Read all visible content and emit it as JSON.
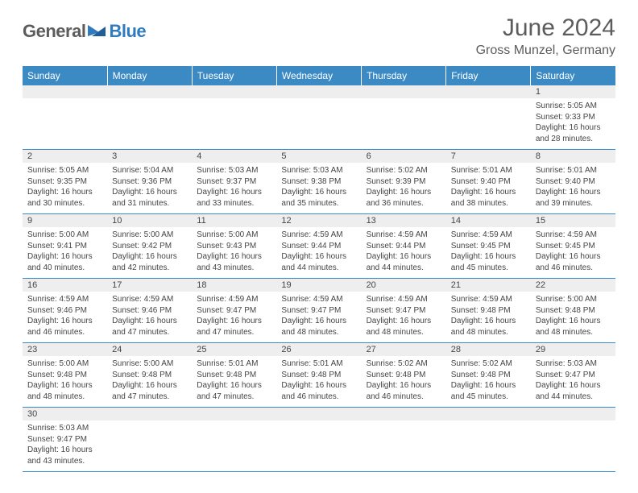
{
  "logo": {
    "part1": "General",
    "part2": "Blue"
  },
  "title": "June 2024",
  "location": "Gross Munzel, Germany",
  "colors": {
    "header_bg": "#3b8ac4",
    "header_text": "#ffffff",
    "daynum_bg": "#eeeeee",
    "border": "#3b8ac4",
    "body_text": "#454545",
    "title_text": "#5c5c5c",
    "logo_gray": "#5c5c5c",
    "logo_blue": "#2f7bbf"
  },
  "weekdays": [
    "Sunday",
    "Monday",
    "Tuesday",
    "Wednesday",
    "Thursday",
    "Friday",
    "Saturday"
  ],
  "weeks": [
    [
      null,
      null,
      null,
      null,
      null,
      null,
      {
        "n": "1",
        "sr": "Sunrise: 5:05 AM",
        "ss": "Sunset: 9:33 PM",
        "d1": "Daylight: 16 hours",
        "d2": "and 28 minutes."
      }
    ],
    [
      {
        "n": "2",
        "sr": "Sunrise: 5:05 AM",
        "ss": "Sunset: 9:35 PM",
        "d1": "Daylight: 16 hours",
        "d2": "and 30 minutes."
      },
      {
        "n": "3",
        "sr": "Sunrise: 5:04 AM",
        "ss": "Sunset: 9:36 PM",
        "d1": "Daylight: 16 hours",
        "d2": "and 31 minutes."
      },
      {
        "n": "4",
        "sr": "Sunrise: 5:03 AM",
        "ss": "Sunset: 9:37 PM",
        "d1": "Daylight: 16 hours",
        "d2": "and 33 minutes."
      },
      {
        "n": "5",
        "sr": "Sunrise: 5:03 AM",
        "ss": "Sunset: 9:38 PM",
        "d1": "Daylight: 16 hours",
        "d2": "and 35 minutes."
      },
      {
        "n": "6",
        "sr": "Sunrise: 5:02 AM",
        "ss": "Sunset: 9:39 PM",
        "d1": "Daylight: 16 hours",
        "d2": "and 36 minutes."
      },
      {
        "n": "7",
        "sr": "Sunrise: 5:01 AM",
        "ss": "Sunset: 9:40 PM",
        "d1": "Daylight: 16 hours",
        "d2": "and 38 minutes."
      },
      {
        "n": "8",
        "sr": "Sunrise: 5:01 AM",
        "ss": "Sunset: 9:40 PM",
        "d1": "Daylight: 16 hours",
        "d2": "and 39 minutes."
      }
    ],
    [
      {
        "n": "9",
        "sr": "Sunrise: 5:00 AM",
        "ss": "Sunset: 9:41 PM",
        "d1": "Daylight: 16 hours",
        "d2": "and 40 minutes."
      },
      {
        "n": "10",
        "sr": "Sunrise: 5:00 AM",
        "ss": "Sunset: 9:42 PM",
        "d1": "Daylight: 16 hours",
        "d2": "and 42 minutes."
      },
      {
        "n": "11",
        "sr": "Sunrise: 5:00 AM",
        "ss": "Sunset: 9:43 PM",
        "d1": "Daylight: 16 hours",
        "d2": "and 43 minutes."
      },
      {
        "n": "12",
        "sr": "Sunrise: 4:59 AM",
        "ss": "Sunset: 9:44 PM",
        "d1": "Daylight: 16 hours",
        "d2": "and 44 minutes."
      },
      {
        "n": "13",
        "sr": "Sunrise: 4:59 AM",
        "ss": "Sunset: 9:44 PM",
        "d1": "Daylight: 16 hours",
        "d2": "and 44 minutes."
      },
      {
        "n": "14",
        "sr": "Sunrise: 4:59 AM",
        "ss": "Sunset: 9:45 PM",
        "d1": "Daylight: 16 hours",
        "d2": "and 45 minutes."
      },
      {
        "n": "15",
        "sr": "Sunrise: 4:59 AM",
        "ss": "Sunset: 9:45 PM",
        "d1": "Daylight: 16 hours",
        "d2": "and 46 minutes."
      }
    ],
    [
      {
        "n": "16",
        "sr": "Sunrise: 4:59 AM",
        "ss": "Sunset: 9:46 PM",
        "d1": "Daylight: 16 hours",
        "d2": "and 46 minutes."
      },
      {
        "n": "17",
        "sr": "Sunrise: 4:59 AM",
        "ss": "Sunset: 9:46 PM",
        "d1": "Daylight: 16 hours",
        "d2": "and 47 minutes."
      },
      {
        "n": "18",
        "sr": "Sunrise: 4:59 AM",
        "ss": "Sunset: 9:47 PM",
        "d1": "Daylight: 16 hours",
        "d2": "and 47 minutes."
      },
      {
        "n": "19",
        "sr": "Sunrise: 4:59 AM",
        "ss": "Sunset: 9:47 PM",
        "d1": "Daylight: 16 hours",
        "d2": "and 48 minutes."
      },
      {
        "n": "20",
        "sr": "Sunrise: 4:59 AM",
        "ss": "Sunset: 9:47 PM",
        "d1": "Daylight: 16 hours",
        "d2": "and 48 minutes."
      },
      {
        "n": "21",
        "sr": "Sunrise: 4:59 AM",
        "ss": "Sunset: 9:48 PM",
        "d1": "Daylight: 16 hours",
        "d2": "and 48 minutes."
      },
      {
        "n": "22",
        "sr": "Sunrise: 5:00 AM",
        "ss": "Sunset: 9:48 PM",
        "d1": "Daylight: 16 hours",
        "d2": "and 48 minutes."
      }
    ],
    [
      {
        "n": "23",
        "sr": "Sunrise: 5:00 AM",
        "ss": "Sunset: 9:48 PM",
        "d1": "Daylight: 16 hours",
        "d2": "and 48 minutes."
      },
      {
        "n": "24",
        "sr": "Sunrise: 5:00 AM",
        "ss": "Sunset: 9:48 PM",
        "d1": "Daylight: 16 hours",
        "d2": "and 47 minutes."
      },
      {
        "n": "25",
        "sr": "Sunrise: 5:01 AM",
        "ss": "Sunset: 9:48 PM",
        "d1": "Daylight: 16 hours",
        "d2": "and 47 minutes."
      },
      {
        "n": "26",
        "sr": "Sunrise: 5:01 AM",
        "ss": "Sunset: 9:48 PM",
        "d1": "Daylight: 16 hours",
        "d2": "and 46 minutes."
      },
      {
        "n": "27",
        "sr": "Sunrise: 5:02 AM",
        "ss": "Sunset: 9:48 PM",
        "d1": "Daylight: 16 hours",
        "d2": "and 46 minutes."
      },
      {
        "n": "28",
        "sr": "Sunrise: 5:02 AM",
        "ss": "Sunset: 9:48 PM",
        "d1": "Daylight: 16 hours",
        "d2": "and 45 minutes."
      },
      {
        "n": "29",
        "sr": "Sunrise: 5:03 AM",
        "ss": "Sunset: 9:47 PM",
        "d1": "Daylight: 16 hours",
        "d2": "and 44 minutes."
      }
    ],
    [
      {
        "n": "30",
        "sr": "Sunrise: 5:03 AM",
        "ss": "Sunset: 9:47 PM",
        "d1": "Daylight: 16 hours",
        "d2": "and 43 minutes."
      },
      null,
      null,
      null,
      null,
      null,
      null
    ]
  ]
}
